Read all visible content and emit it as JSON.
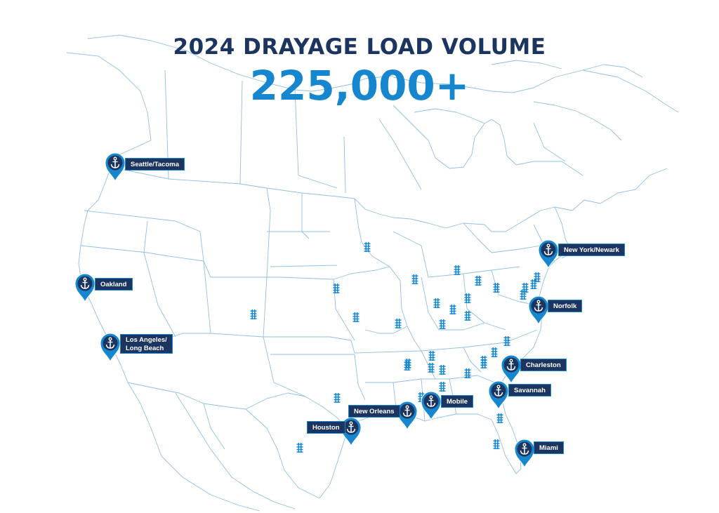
{
  "title": "2024 DRAYAGE LOAD VOLUME",
  "total": "225,000+",
  "colors": {
    "heading": "#1c3560",
    "total": "#1687cf",
    "marker": "#1687cf",
    "label_bg": "#1c3560",
    "borders": "#8fbfe3"
  },
  "port_icon": "anchor-icon",
  "rail_icon": "rail-track-icon",
  "ports": [
    {
      "id": "seattle",
      "name": "Seattle/Tacoma"
    },
    {
      "id": "oakland",
      "name": "Oakland"
    },
    {
      "id": "losangeles",
      "name": "Los Angeles/\nLong Beach"
    },
    {
      "id": "newyork",
      "name": "New York/Newark"
    },
    {
      "id": "norfolk",
      "name": "Norfolk"
    },
    {
      "id": "charleston",
      "name": "Charleston"
    },
    {
      "id": "savannah",
      "name": "Savannah"
    },
    {
      "id": "miami",
      "name": "Miami"
    },
    {
      "id": "mobile",
      "name": "Mobile"
    },
    {
      "id": "neworleans",
      "name": "New Orleans"
    },
    {
      "id": "houston",
      "name": "Houston"
    }
  ],
  "rail_ramp_count": 37
}
